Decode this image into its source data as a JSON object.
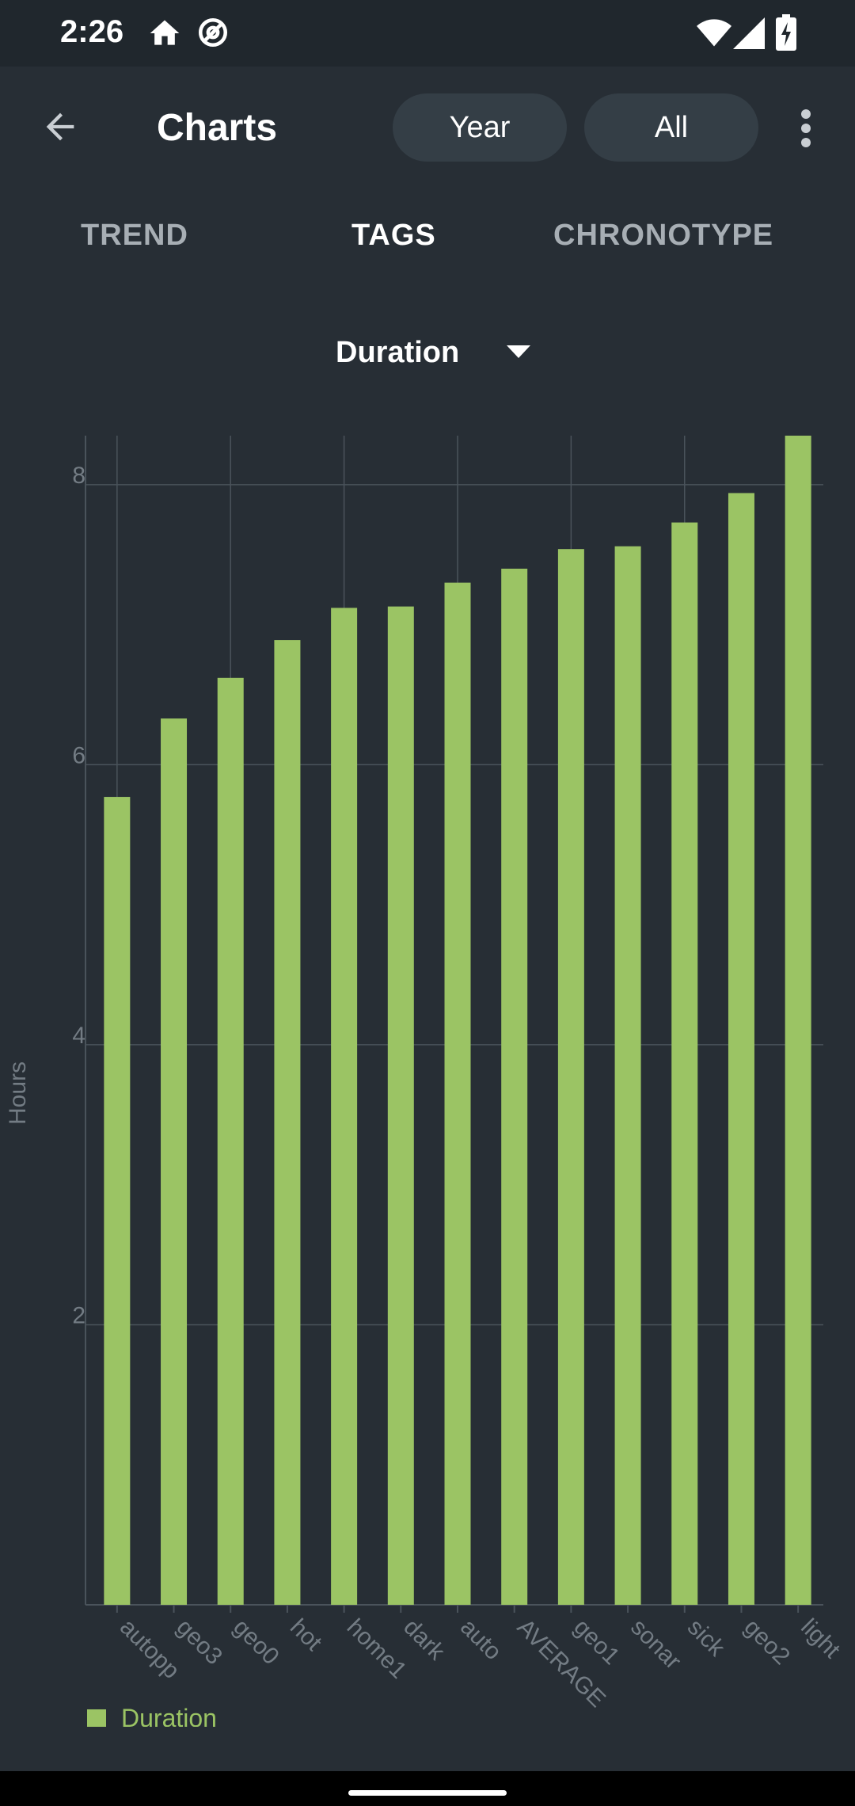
{
  "status_bar": {
    "time": "2:26",
    "icons": [
      "home-icon",
      "at-sign-icon",
      "wifi-icon",
      "signal-icon",
      "battery-charging-icon"
    ]
  },
  "app_bar": {
    "title": "Charts",
    "back_icon": "arrow-left-icon",
    "period_label": "Year",
    "range_label": "All",
    "menu_icon": "more-vert-icon"
  },
  "tabs": [
    {
      "label": "TREND",
      "selected": false
    },
    {
      "label": "TAGS",
      "selected": true
    },
    {
      "label": "CHRONOTYPE",
      "selected": false
    }
  ],
  "metric_select": {
    "value": "Duration",
    "icon": "dropdown-arrow-icon"
  },
  "colors": {
    "background": "#272e35",
    "bar": "#9bc464",
    "grid": "#4a535b",
    "axis_text": "#737c84",
    "pill": "#343e46"
  },
  "chart_data": {
    "type": "bar",
    "categories": [
      "autopp",
      "geo3",
      "geo0",
      "hot",
      "home1",
      "dark",
      "auto",
      "AVERAGE",
      "geo1",
      "sonar",
      "sick",
      "geo2",
      "light"
    ],
    "series": [
      {
        "name": "Duration",
        "values": [
          5.77,
          6.33,
          6.62,
          6.89,
          7.12,
          7.13,
          7.3,
          7.4,
          7.54,
          7.56,
          7.73,
          7.94,
          8.35
        ]
      }
    ],
    "ylabel": "Hours",
    "yticks": [
      2,
      4,
      6,
      8
    ],
    "ylim": [
      0,
      8.35
    ],
    "grid": true,
    "legend": "bottom-left"
  }
}
